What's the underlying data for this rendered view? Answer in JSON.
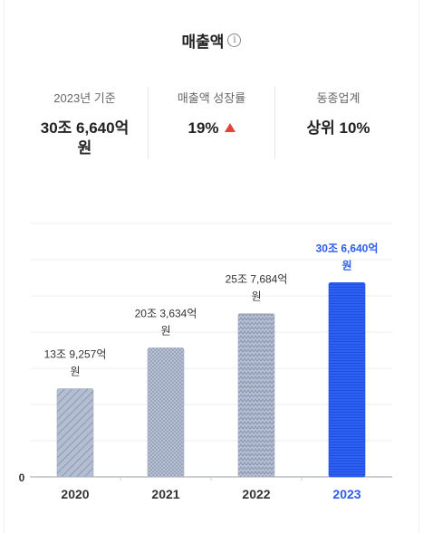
{
  "title": "매출액",
  "info_icon": "info-icon",
  "stats": [
    {
      "label": "2023년 기준",
      "value": "30조 6,640억원"
    },
    {
      "label": "매출액 성장률",
      "value": "19%",
      "trend": "up"
    },
    {
      "label": "동종업계",
      "value": "상위 10%"
    }
  ],
  "colors": {
    "highlight": "#2c5cf0",
    "bar_gray": "#aab4c8",
    "trend_up": "#e5413d"
  },
  "chart_data": {
    "type": "bar",
    "categories": [
      "2020",
      "2021",
      "2022",
      "2023"
    ],
    "values": [
      13.9257,
      20.3634,
      25.7684,
      30.664
    ],
    "value_labels": [
      "13조 9,257억원",
      "20조 3,634억원",
      "25조 7,684억원",
      "30조 6,640억원"
    ],
    "highlight_index": 3,
    "y_tick_labels": [
      "0"
    ],
    "ylim": [
      0,
      40
    ],
    "grid": true
  }
}
